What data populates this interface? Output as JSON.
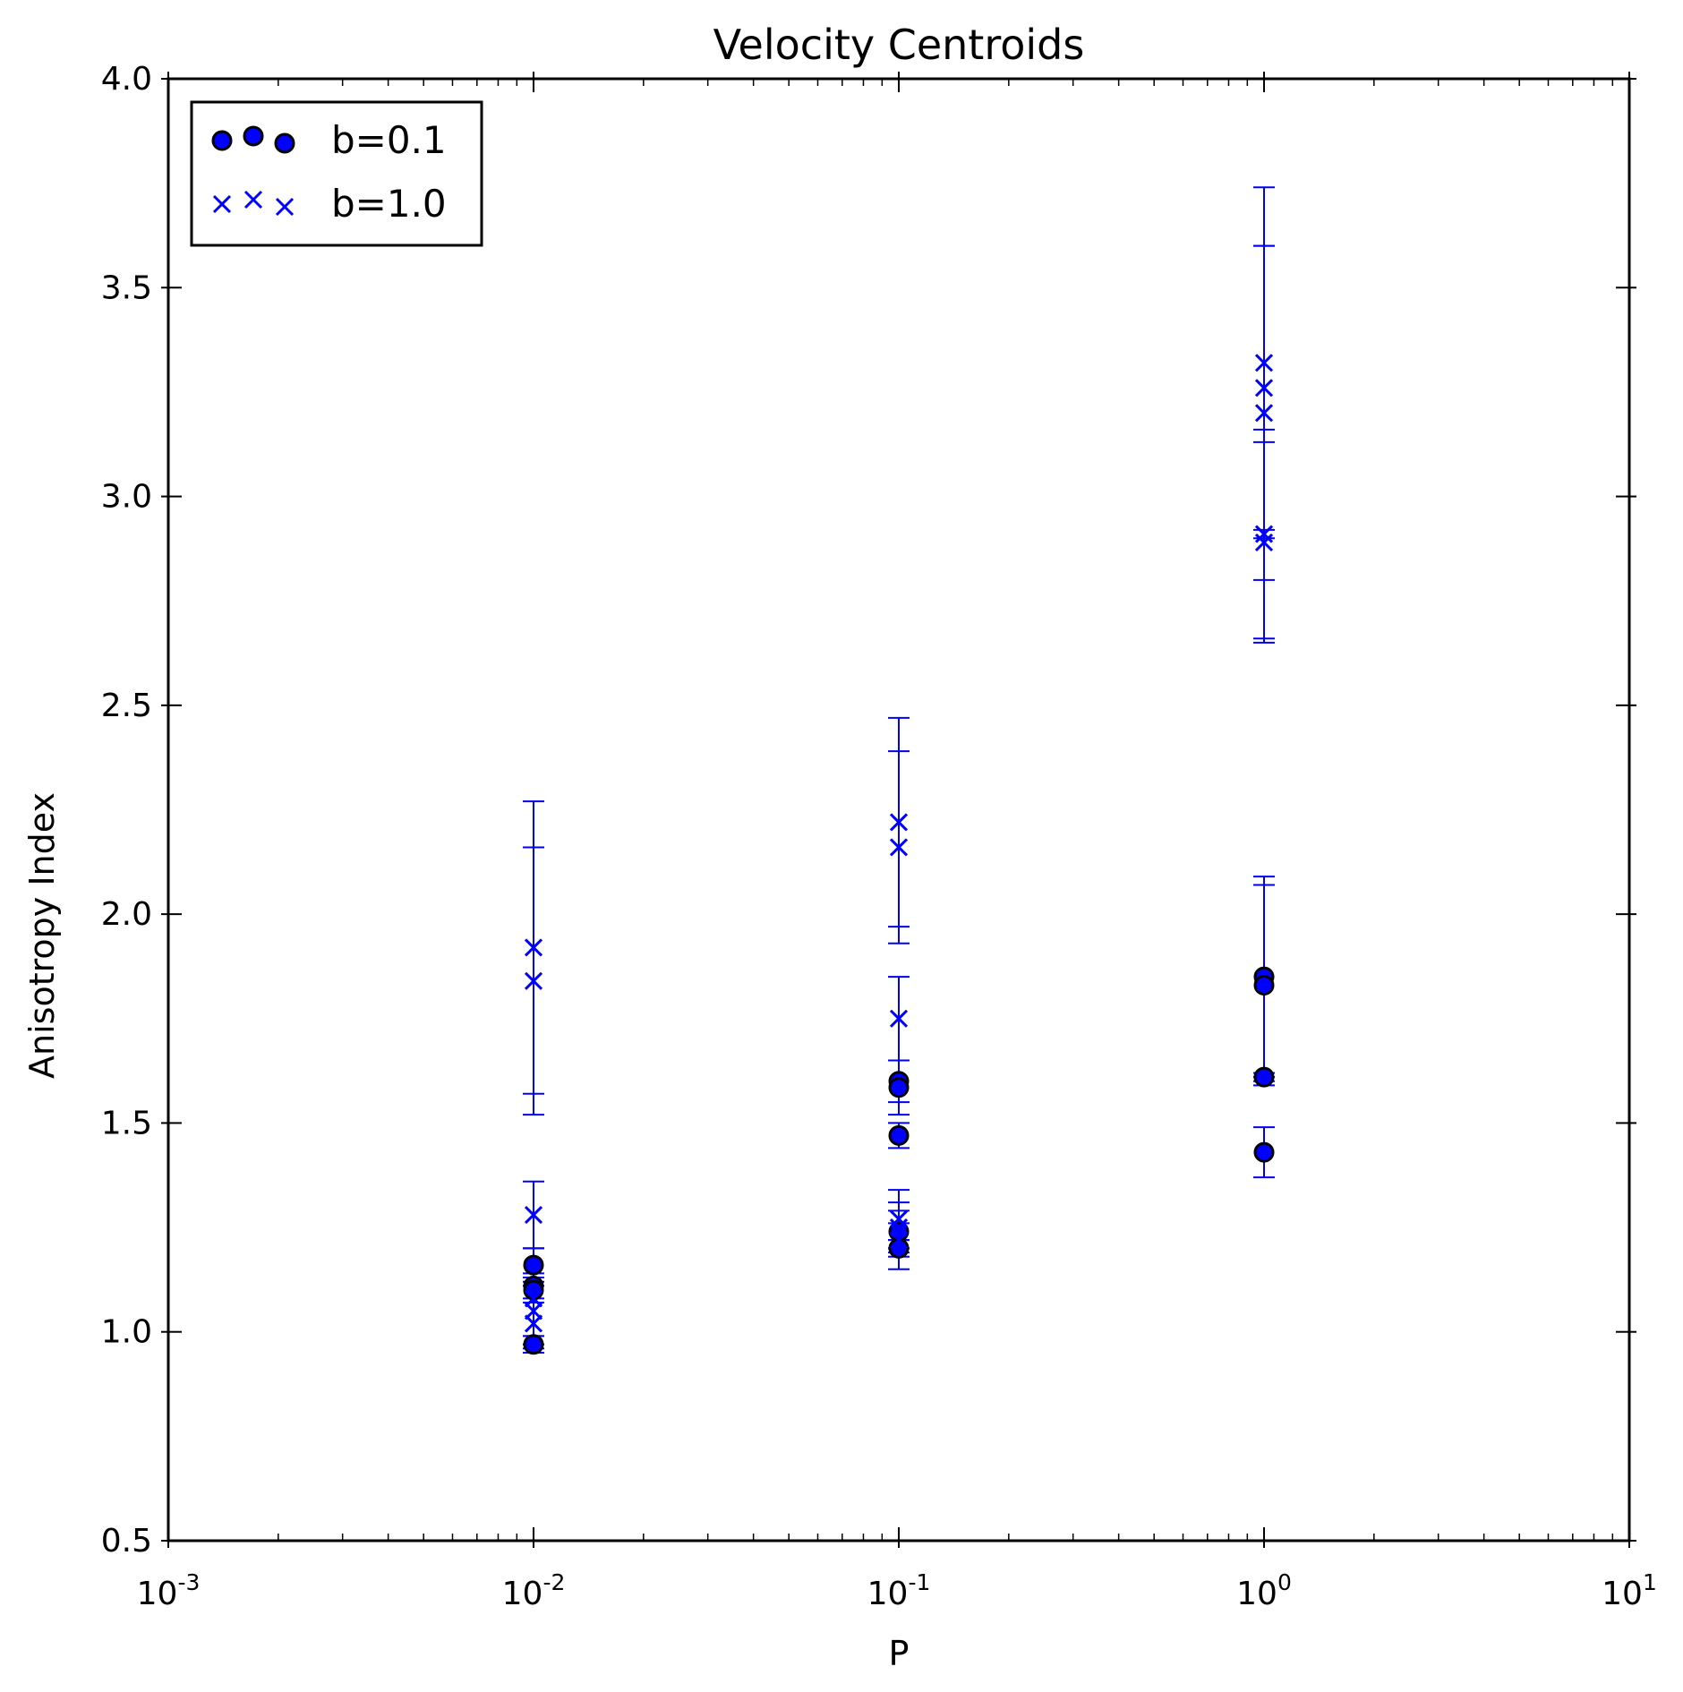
{
  "chart_data": {
    "type": "scatter",
    "title": "Velocity Centroids",
    "xlabel": "P",
    "ylabel": "Anisotropy Index",
    "xscale": "log",
    "xlim": [
      0.001,
      10
    ],
    "ylim": [
      0.5,
      4.0
    ],
    "x_ticks": [
      {
        "value": 0.001,
        "base": "10",
        "exp": "-3"
      },
      {
        "value": 0.01,
        "base": "10",
        "exp": "-2"
      },
      {
        "value": 0.1,
        "base": "10",
        "exp": "-1"
      },
      {
        "value": 1,
        "base": "10",
        "exp": "0"
      },
      {
        "value": 10,
        "base": "10",
        "exp": "1"
      }
    ],
    "y_ticks": [
      {
        "value": 0.5,
        "label": "0.5"
      },
      {
        "value": 1.0,
        "label": "1.0"
      },
      {
        "value": 1.5,
        "label": "1.5"
      },
      {
        "value": 2.0,
        "label": "2.0"
      },
      {
        "value": 2.5,
        "label": "2.5"
      },
      {
        "value": 3.0,
        "label": "3.0"
      },
      {
        "value": 3.5,
        "label": "3.5"
      },
      {
        "value": 4.0,
        "label": "4.0"
      }
    ],
    "grid": false,
    "legend_position": "top-left",
    "colors": {
      "series": "#0000ff",
      "marker_edge": "#000000",
      "axes": "#000000"
    },
    "series": [
      {
        "name": "b=0.1",
        "marker": "circle",
        "points": [
          {
            "x": 0.01,
            "y": 1.16,
            "err": 0.04
          },
          {
            "x": 0.01,
            "y": 1.11,
            "err": 0.03
          },
          {
            "x": 0.01,
            "y": 1.1,
            "err": 0.03
          },
          {
            "x": 0.01,
            "y": 0.97,
            "err": 0.02
          },
          {
            "x": 0.1,
            "y": 1.6,
            "err": 0.05
          },
          {
            "x": 0.1,
            "y": 1.585,
            "err": 0.065
          },
          {
            "x": 0.1,
            "y": 1.47,
            "err": 0.03
          },
          {
            "x": 0.1,
            "y": 1.24,
            "err": 0.02
          },
          {
            "x": 0.1,
            "y": 1.2,
            "err": 0.02
          },
          {
            "x": 1,
            "y": 1.85,
            "err": 0.24
          },
          {
            "x": 1,
            "y": 1.83,
            "err": 0.24
          },
          {
            "x": 1,
            "y": 1.61,
            "err": 0.01
          },
          {
            "x": 1,
            "y": 1.43,
            "err": 0.06
          }
        ]
      },
      {
        "name": "b=1.0",
        "marker": "x",
        "points": [
          {
            "x": 0.01,
            "y": 1.92,
            "err": 0.35
          },
          {
            "x": 0.01,
            "y": 1.84,
            "err": 0.32
          },
          {
            "x": 0.01,
            "y": 1.28,
            "err": 0.08
          },
          {
            "x": 0.01,
            "y": 1.08,
            "err": 0.12
          },
          {
            "x": 0.01,
            "y": 1.05,
            "err": 0.06
          },
          {
            "x": 0.01,
            "y": 1.02,
            "err": 0.05
          },
          {
            "x": 0.1,
            "y": 2.22,
            "err": 0.25
          },
          {
            "x": 0.1,
            "y": 2.16,
            "err": 0.23
          },
          {
            "x": 0.1,
            "y": 1.75,
            "err": 0.1
          },
          {
            "x": 0.1,
            "y": 1.27,
            "err": 0.07
          },
          {
            "x": 0.1,
            "y": 1.25,
            "err": 0.06
          },
          {
            "x": 0.1,
            "y": 1.22,
            "err": 0.07
          },
          {
            "x": 1,
            "y": 3.32,
            "err": 0.42
          },
          {
            "x": 1,
            "y": 3.26,
            "err": 0.34
          },
          {
            "x": 1,
            "y": 3.2,
            "err": 0.4
          },
          {
            "x": 1,
            "y": 2.91,
            "err": 0.25
          },
          {
            "x": 1,
            "y": 2.89,
            "err": 0.24
          }
        ]
      }
    ]
  }
}
